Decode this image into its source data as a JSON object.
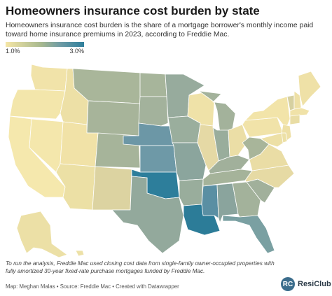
{
  "title": "Homeowners insurance cost burden by state",
  "subtitle": "Homeowners insurance cost burden is the share of a mortgage borrower's monthly income paid toward home insurance premiums in 2023, according to Freddie Mac.",
  "legend": {
    "min_label": "1.0%",
    "max_label": "3.0%",
    "color_min": "#f5e6a6",
    "color_max": "#2f7f9c"
  },
  "footnote": "To run the analysis, Freddie Mac used closing cost data from single-family owner-occupied properties with fully amortized 30-year fixed-rate purchase mortgages funded by Freddie Mac.",
  "credit": "Map: Meghan Malas • Source: Freddie Mac • Created with Datawrapper",
  "brand": {
    "mark": "RC",
    "name": "ResiClub"
  },
  "states": {
    "WA": "#f1e3a9",
    "OR": "#f3e6ab",
    "CA": "#f5e8ad",
    "NV": "#f4e7ac",
    "ID": "#ede0a6",
    "MT": "#a9b69a",
    "WY": "#a7b49a",
    "UT": "#f1e2a7",
    "AZ": "#ece0a5",
    "CO": "#a6b49a",
    "NM": "#dcd3a1",
    "ND": "#a7b59b",
    "SD": "#a3b29c",
    "NE": "#6c97a6",
    "KS": "#6e99a7",
    "OK": "#2d7e9b",
    "TX": "#93a99c",
    "MN": "#97ab9d",
    "IA": "#9aae9d",
    "MO": "#8ba59d",
    "AR": "#99ad9c",
    "LA": "#2c7c98",
    "WI": "#efe2a8",
    "IL": "#e5d9a5",
    "MI": "#a3b29b",
    "IN": "#99ad9c",
    "OH": "#ebdea6",
    "KY": "#a1b09b",
    "TN": "#a5b39a",
    "MS": "#5a8fa3",
    "AL": "#8aa49d",
    "GA": "#a3b29b",
    "FL": "#7aa0a2",
    "SC": "#a1b09b",
    "NC": "#e6daa4",
    "VA": "#eadda5",
    "WV": "#a8b59a",
    "PA": "#f1e3a9",
    "NY": "#f2e4a9",
    "VT": "#d6d0a0",
    "NH": "#eee0a6",
    "ME": "#efe1a7",
    "MA": "#f0e2a8",
    "CT": "#e9dda5",
    "NJ": "#eee0a6",
    "MD": "#ede0a6",
    "DE": "#ece0a6",
    "AK": "#ece0a6",
    "HI": "#ede1a7"
  }
}
